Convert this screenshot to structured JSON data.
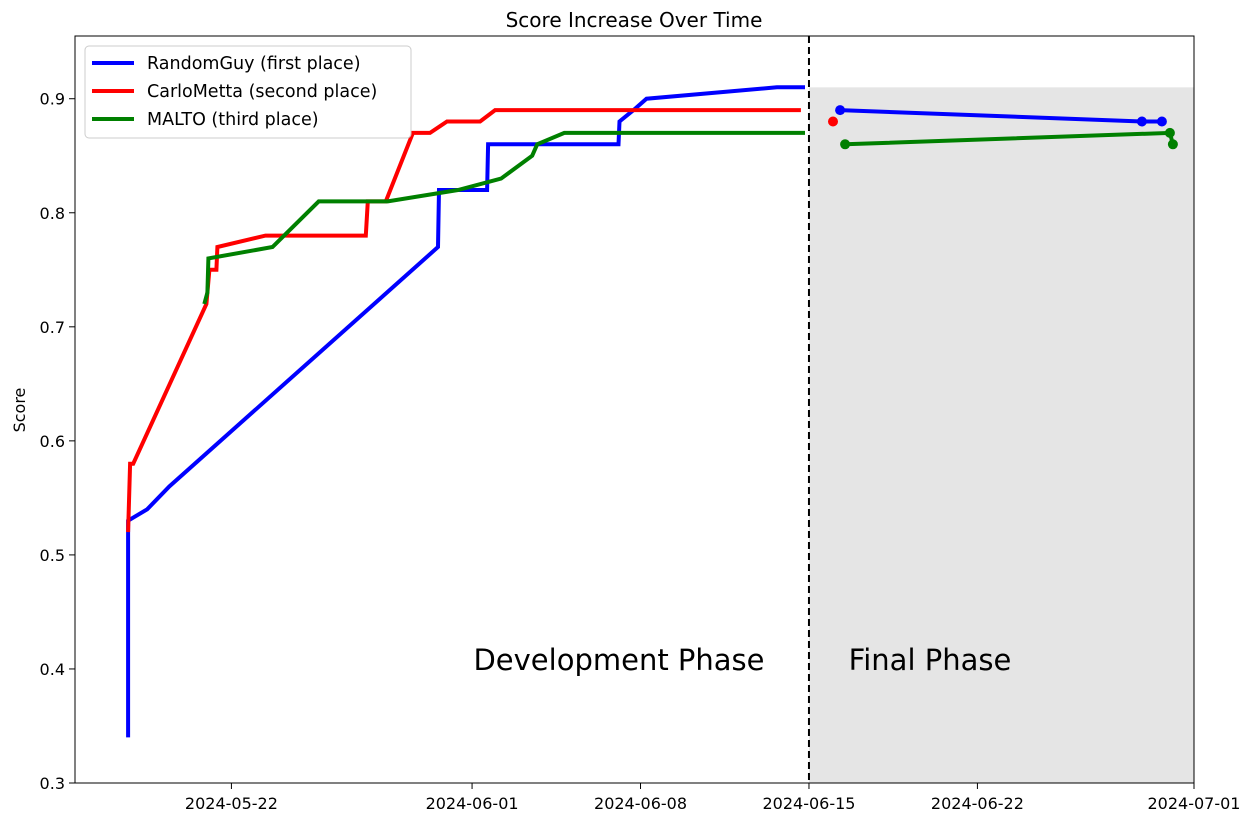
{
  "chart_data": {
    "type": "line",
    "title": "Score Increase Over Time",
    "xlabel": "",
    "ylabel": "Score",
    "xlim": [
      "2024-05-15T12:00",
      "2024-07-01T00:00"
    ],
    "ylim": [
      0.3,
      0.955
    ],
    "x_ticks": [
      "2024-05-22",
      "2024-06-01",
      "2024-06-08",
      "2024-06-15",
      "2024-06-22",
      "2024-07-01"
    ],
    "y_ticks": [
      "0.3",
      "0.4",
      "0.5",
      "0.6",
      "0.7",
      "0.8",
      "0.9"
    ],
    "grid": false,
    "legend_position": "top-left",
    "phase_divider": "2024-06-15T00:00",
    "final_phase_shade_top": 0.91,
    "annotations": [
      "Development Phase",
      "Final Phase"
    ],
    "series": [
      {
        "name": "RandomGuy (first place)",
        "color": "#0000ff",
        "development": [
          [
            "2024-05-17T17:00",
            0.34
          ],
          [
            "2024-05-17T17:00",
            0.53
          ],
          [
            "2024-05-18T12:00",
            0.54
          ],
          [
            "2024-05-19T10:00",
            0.56
          ],
          [
            "2024-05-30T14:00",
            0.77
          ],
          [
            "2024-05-30T15:00",
            0.82
          ],
          [
            "2024-06-01T15:00",
            0.82
          ],
          [
            "2024-06-01T16:00",
            0.86
          ],
          [
            "2024-06-07T02:00",
            0.86
          ],
          [
            "2024-06-07T03:00",
            0.88
          ],
          [
            "2024-06-07T17:00",
            0.89
          ],
          [
            "2024-06-08T06:00",
            0.9
          ],
          [
            "2024-06-13T16:00",
            0.91
          ],
          [
            "2024-06-14T20:00",
            0.91
          ]
        ],
        "final": [
          [
            "2024-06-16T07:00",
            0.89
          ],
          [
            "2024-06-28T20:00",
            0.88
          ],
          [
            "2024-06-29T16:00",
            0.88
          ]
        ]
      },
      {
        "name": "CarloMetta (second place)",
        "color": "#ff0000",
        "development": [
          [
            "2024-05-17T17:00",
            0.52
          ],
          [
            "2024-05-17T19:00",
            0.58
          ],
          [
            "2024-05-17T22:00",
            0.58
          ],
          [
            "2024-05-20T23:00",
            0.72
          ],
          [
            "2024-05-21T02:00",
            0.75
          ],
          [
            "2024-05-21T09:00",
            0.75
          ],
          [
            "2024-05-21T10:00",
            0.77
          ],
          [
            "2024-05-23T10:00",
            0.78
          ],
          [
            "2024-05-27T14:00",
            0.78
          ],
          [
            "2024-05-27T16:00",
            0.81
          ],
          [
            "2024-05-28T10:00",
            0.81
          ],
          [
            "2024-05-29T13:00",
            0.87
          ],
          [
            "2024-05-30T06:00",
            0.87
          ],
          [
            "2024-05-30T23:00",
            0.88
          ],
          [
            "2024-06-01T08:00",
            0.88
          ],
          [
            "2024-06-01T23:00",
            0.89
          ],
          [
            "2024-06-14T16:00",
            0.89
          ]
        ],
        "final": [
          [
            "2024-06-16T00:00",
            0.88
          ]
        ]
      },
      {
        "name": "MALTO (third place)",
        "color": "#008000",
        "development": [
          [
            "2024-05-20T21:00",
            0.72
          ],
          [
            "2024-05-21T00:00",
            0.73
          ],
          [
            "2024-05-21T01:00",
            0.76
          ],
          [
            "2024-05-23T17:00",
            0.77
          ],
          [
            "2024-05-25T15:00",
            0.81
          ],
          [
            "2024-05-28T12:00",
            0.81
          ],
          [
            "2024-05-31T10:00",
            0.82
          ],
          [
            "2024-06-02T05:00",
            0.83
          ],
          [
            "2024-06-03T12:00",
            0.85
          ],
          [
            "2024-06-03T17:00",
            0.86
          ],
          [
            "2024-06-04T20:00",
            0.87
          ],
          [
            "2024-06-14T20:00",
            0.87
          ]
        ],
        "final": [
          [
            "2024-06-16T12:00",
            0.86
          ],
          [
            "2024-06-30T00:00",
            0.87
          ],
          [
            "2024-06-30T03:00",
            0.86
          ]
        ]
      }
    ]
  }
}
